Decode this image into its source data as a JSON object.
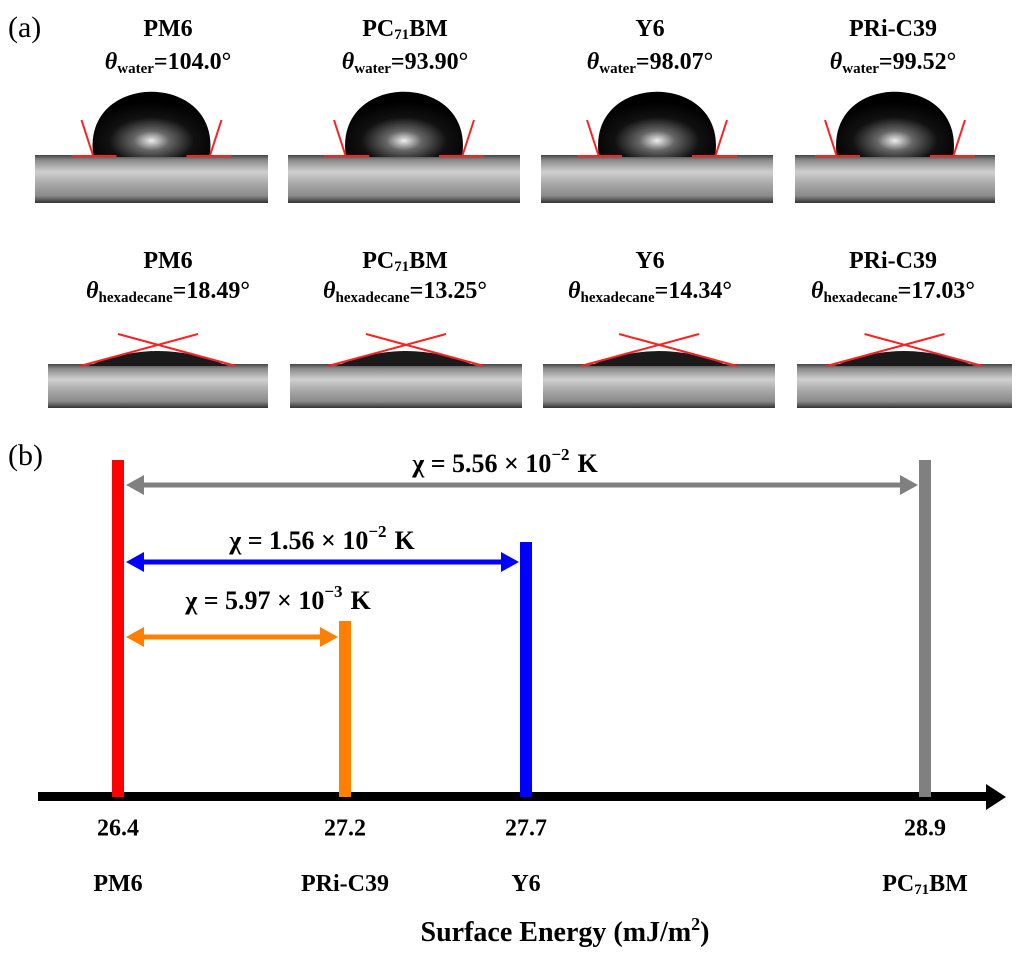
{
  "panel_a": {
    "label": "(a)",
    "samples": [
      {
        "name": {
          "main": "PM6"
        }
      },
      {
        "name": {
          "main": "PC",
          "sub": "71",
          "tail": "BM"
        }
      },
      {
        "name": {
          "main": "Y6"
        }
      },
      {
        "name": {
          "main": "PRi-C39"
        }
      }
    ],
    "rows": [
      {
        "symbol": "θ",
        "solvent": "water",
        "angles": [
          "=104.0°",
          "=93.90°",
          "=98.07°",
          "=99.52°"
        ]
      },
      {
        "symbol": "θ",
        "solvent": "hexadecane",
        "angles": [
          "=18.49°",
          "=13.25°",
          "=14.34°",
          "=17.03°"
        ]
      }
    ]
  },
  "panel_b": {
    "label": "(b)",
    "axis_title": {
      "main": "Surface Energy (mJ/m",
      "sup": "2",
      "tail": ")"
    },
    "points": [
      {
        "value": "26.4",
        "name": {
          "main": "PM6"
        },
        "color": "#ff0000"
      },
      {
        "value": "27.2",
        "name": {
          "main": "PRi-C39"
        },
        "color": "#ff8000"
      },
      {
        "value": "27.7",
        "name": {
          "main": "Y6"
        },
        "color": "#0000ff"
      },
      {
        "value": "28.9",
        "name": {
          "main": "PC",
          "sub": "71",
          "tail": "BM"
        },
        "color": "#808080"
      }
    ],
    "arrows": [
      {
        "chi": "χ = 5.56 × 10",
        "exponent": "−2",
        "unit": "K"
      },
      {
        "chi": "χ = 1.56 × 10",
        "exponent": "−2",
        "unit": "K"
      },
      {
        "chi": "χ = 5.97 × 10",
        "exponent": "−3",
        "unit": "K"
      }
    ]
  }
}
